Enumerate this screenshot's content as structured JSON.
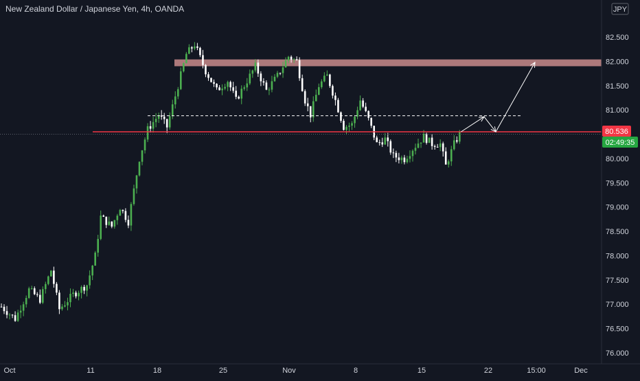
{
  "chart_data": {
    "type": "candlestick",
    "title": "New Zealand Dollar / Japanese Yen, 4h, OANDA",
    "currency_badge": "JPY",
    "x_tick_labels": [
      "Oct",
      "11",
      "18",
      "25",
      "Nov",
      "8",
      "15",
      "22",
      "15:00",
      "Dec"
    ],
    "y_tick_labels": [
      "82.500",
      "82.000",
      "81.500",
      "81.000",
      "80.500",
      "80.000",
      "79.500",
      "79.000",
      "78.500",
      "78.000",
      "77.500",
      "77.000",
      "76.500",
      "76.000"
    ],
    "ylim": [
      75.9,
      83.1
    ],
    "price_label": "80.536",
    "countdown_label": "02:49:35",
    "current_price": 80.5,
    "resistance_zone": [
      81.9,
      82.04
    ],
    "support_level": 80.55,
    "dashed_level": 80.88,
    "grid": false,
    "colors": {
      "background": "#131722",
      "up": "#4caf50",
      "down": "#ffffff",
      "support_line": "#f23645",
      "resistance_zone": "#c98b8b",
      "price_badge": "#f23645",
      "countdown_badge": "#26a641",
      "axis_text": "#d1d4dc"
    },
    "waypoints": [
      [
        0,
        76.95
      ],
      [
        5,
        76.7
      ],
      [
        10,
        77.3
      ],
      [
        14,
        77.1
      ],
      [
        18,
        77.7
      ],
      [
        21,
        76.9
      ],
      [
        26,
        77.2
      ],
      [
        31,
        77.4
      ],
      [
        34,
        78.0
      ],
      [
        36,
        78.8
      ],
      [
        40,
        78.6
      ],
      [
        43,
        79.0
      ],
      [
        46,
        78.7
      ],
      [
        50,
        80.0
      ],
      [
        53,
        80.6
      ],
      [
        57,
        80.9
      ],
      [
        60,
        80.65
      ],
      [
        64,
        81.5
      ],
      [
        67,
        82.15
      ],
      [
        70,
        82.35
      ],
      [
        74,
        81.8
      ],
      [
        78,
        81.4
      ],
      [
        82,
        81.6
      ],
      [
        85,
        81.2
      ],
      [
        88,
        81.5
      ],
      [
        92,
        81.9
      ],
      [
        96,
        81.4
      ],
      [
        100,
        81.7
      ],
      [
        104,
        82.1
      ],
      [
        107,
        82.0
      ],
      [
        110,
        81.2
      ],
      [
        112,
        80.9
      ],
      [
        115,
        81.5
      ],
      [
        118,
        81.7
      ],
      [
        121,
        81.2
      ],
      [
        124,
        80.65
      ],
      [
        127,
        80.7
      ],
      [
        130,
        81.2
      ],
      [
        133,
        80.8
      ],
      [
        136,
        80.3
      ],
      [
        139,
        80.4
      ],
      [
        142,
        80.05
      ],
      [
        146,
        79.99
      ],
      [
        149,
        80.2
      ],
      [
        153,
        80.45
      ],
      [
        156,
        80.3
      ],
      [
        159,
        80.3
      ],
      [
        161,
        79.85
      ],
      [
        164,
        80.3
      ],
      [
        166,
        80.5
      ]
    ]
  }
}
